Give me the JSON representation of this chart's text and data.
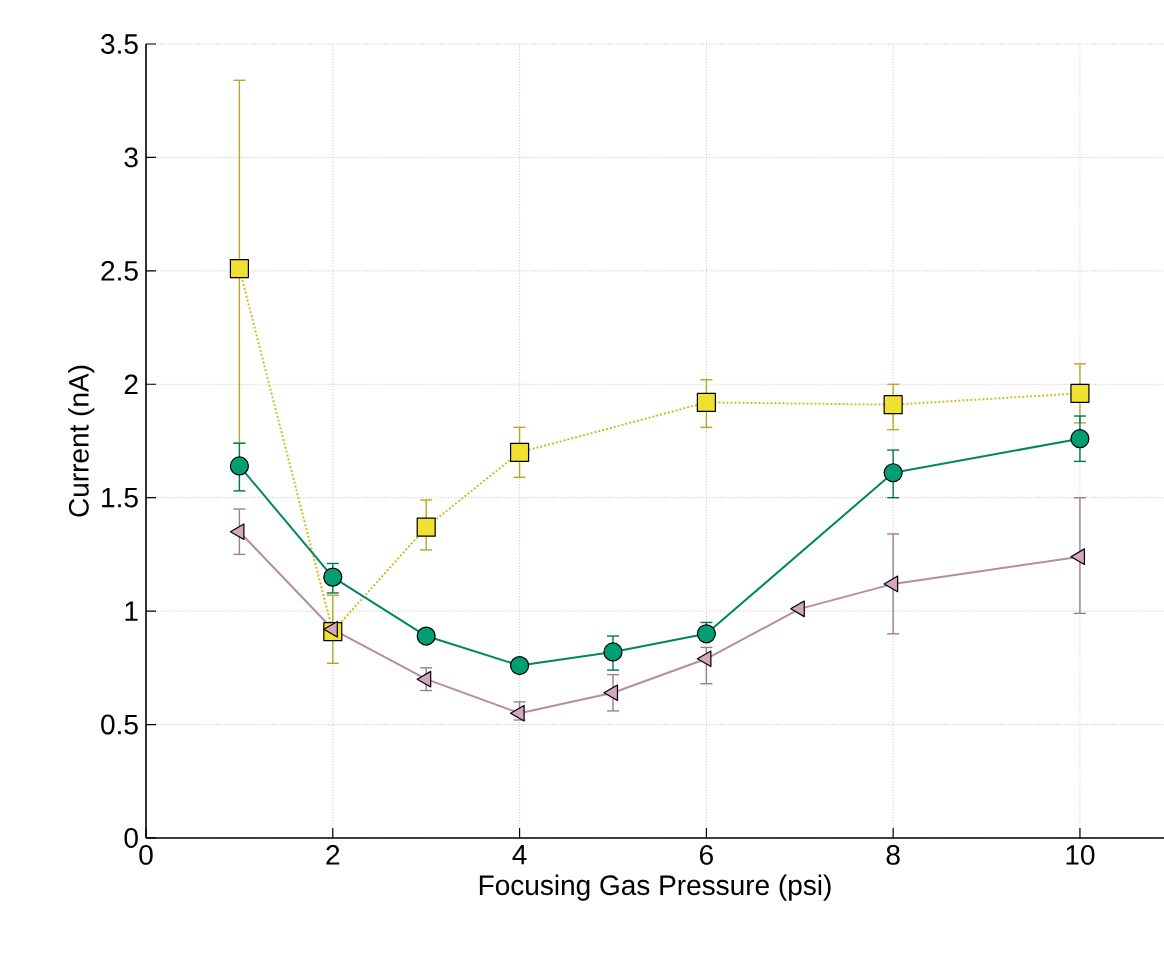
{
  "chart_data": {
    "type": "line",
    "xlabel": "Focusing Gas Pressure (psi)",
    "ylabel": "Current (nA)",
    "xlim": [
      0,
      10.9
    ],
    "xticks": [
      0,
      2,
      4,
      6,
      8,
      10
    ],
    "ylim": [
      0,
      3.5
    ],
    "yticks": [
      0,
      0.5,
      1,
      1.5,
      2,
      2.5,
      3,
      3.5
    ],
    "grid": true,
    "series": [
      {
        "color": "#f0e030",
        "marker": "square",
        "line_style": "dotted",
        "x": [
          1,
          2,
          3,
          4,
          6,
          8,
          10
        ],
        "values": [
          2.51,
          0.91,
          1.37,
          1.7,
          1.92,
          1.91,
          1.96
        ],
        "errors": [
          [
            1.74,
            3.34
          ],
          [
            0.77,
            1.07
          ],
          [
            1.27,
            1.49
          ],
          [
            1.59,
            1.81
          ],
          [
            1.81,
            2.02
          ],
          [
            1.8,
            2.0
          ],
          [
            1.83,
            2.09
          ]
        ]
      },
      {
        "color": "#009e73",
        "marker": "circle",
        "line_style": "solid",
        "x": [
          1,
          2,
          3,
          4,
          5,
          6,
          8,
          10
        ],
        "values": [
          1.64,
          1.15,
          0.89,
          0.76,
          0.82,
          0.9,
          1.61,
          1.76
        ],
        "errors": [
          [
            1.53,
            1.74
          ],
          [
            1.08,
            1.21
          ],
          null,
          null,
          [
            0.74,
            0.89
          ],
          [
            0.87,
            0.95
          ],
          [
            1.5,
            1.71
          ],
          [
            1.66,
            1.86
          ]
        ]
      },
      {
        "color": "#d4a6c0",
        "marker": "triangle",
        "line_style": "solid",
        "x": [
          1,
          2,
          3,
          4,
          5,
          6,
          7,
          8,
          10
        ],
        "values": [
          1.35,
          0.92,
          0.7,
          0.55,
          0.64,
          0.79,
          1.01,
          1.12,
          1.24
        ],
        "errors": [
          [
            1.25,
            1.45
          ],
          null,
          [
            0.65,
            0.75
          ],
          [
            0.52,
            0.6
          ],
          [
            0.56,
            0.72
          ],
          [
            0.68,
            0.84
          ],
          null,
          [
            0.9,
            1.34
          ],
          [
            0.99,
            1.5
          ]
        ]
      }
    ]
  }
}
